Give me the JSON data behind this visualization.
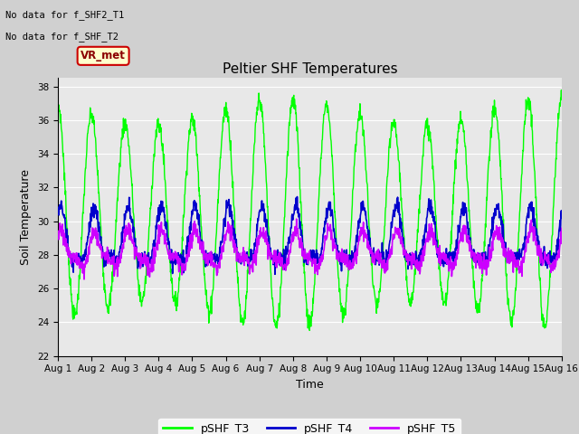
{
  "title": "Peltier SHF Temperatures",
  "xlabel": "Time",
  "ylabel": "Soil Temperature",
  "ylim": [
    22,
    38.5
  ],
  "yticks": [
    22,
    24,
    26,
    28,
    30,
    32,
    34,
    36,
    38
  ],
  "xlim_days": [
    0,
    15
  ],
  "xtick_labels": [
    "Aug 1",
    "Aug 2",
    "Aug 3",
    "Aug 4",
    "Aug 5",
    "Aug 6",
    "Aug 7",
    "Aug 8",
    "Aug 9",
    "Aug 10",
    "Aug 11",
    "Aug 12",
    "Aug 13",
    "Aug 14",
    "Aug 15",
    "Aug 16"
  ],
  "color_T3": "#00ff00",
  "color_T4": "#0000cc",
  "color_T5": "#cc00ff",
  "legend_labels": [
    "pSHF_T3",
    "pSHF_T4",
    "pSHF_T5"
  ],
  "no_data_text1": "No data for f_SHF2_T1",
  "no_data_text2": "No data for f_SHF_T2",
  "vr_met_label": "VR_met",
  "bg_color": "#e8e8e8",
  "grid_color": "#ffffff",
  "annotation_bg": "#ffffcc",
  "annotation_border": "#cc0000",
  "fig_bg": "#d0d0d0"
}
